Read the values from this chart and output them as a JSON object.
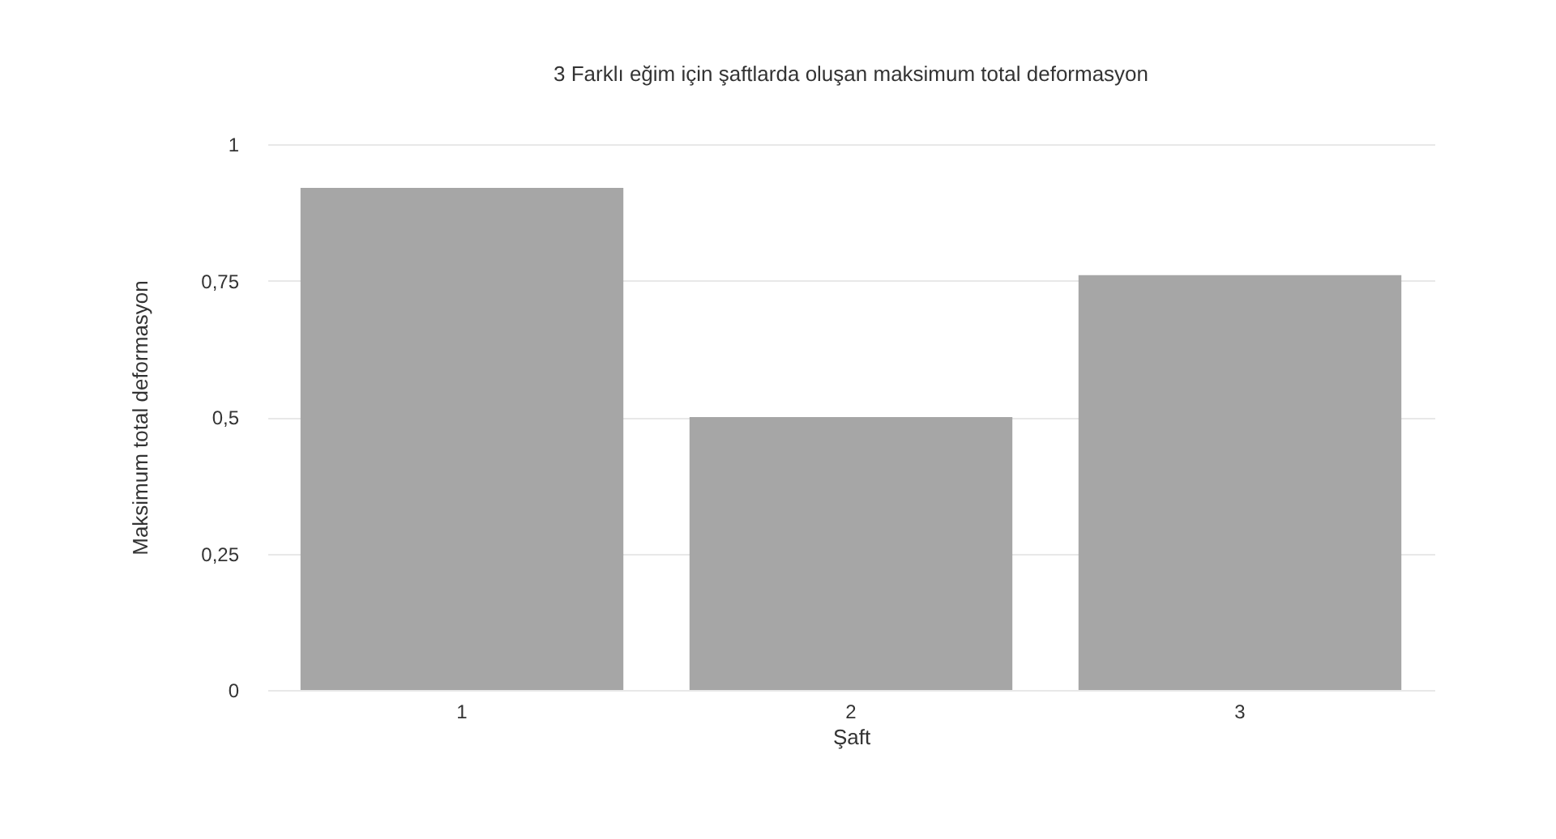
{
  "chart_data": {
    "type": "bar",
    "title": "3 Farklı eğim için şaftlarda oluşan maksimum total deformasyon",
    "xlabel": "Şaft",
    "ylabel": "Maksimum total deformasyon",
    "categories": [
      "1",
      "2",
      "3"
    ],
    "values": [
      0.92,
      0.5,
      0.76
    ],
    "color": "#a6a6a6",
    "ylim": [
      0,
      1
    ],
    "yticks": [
      0,
      {
        "value": 0.25,
        "label": "0,25"
      },
      {
        "value": 0.5,
        "label": "0,5"
      },
      {
        "value": 0.75,
        "label": "0,75"
      },
      1
    ],
    "grid": "y"
  }
}
